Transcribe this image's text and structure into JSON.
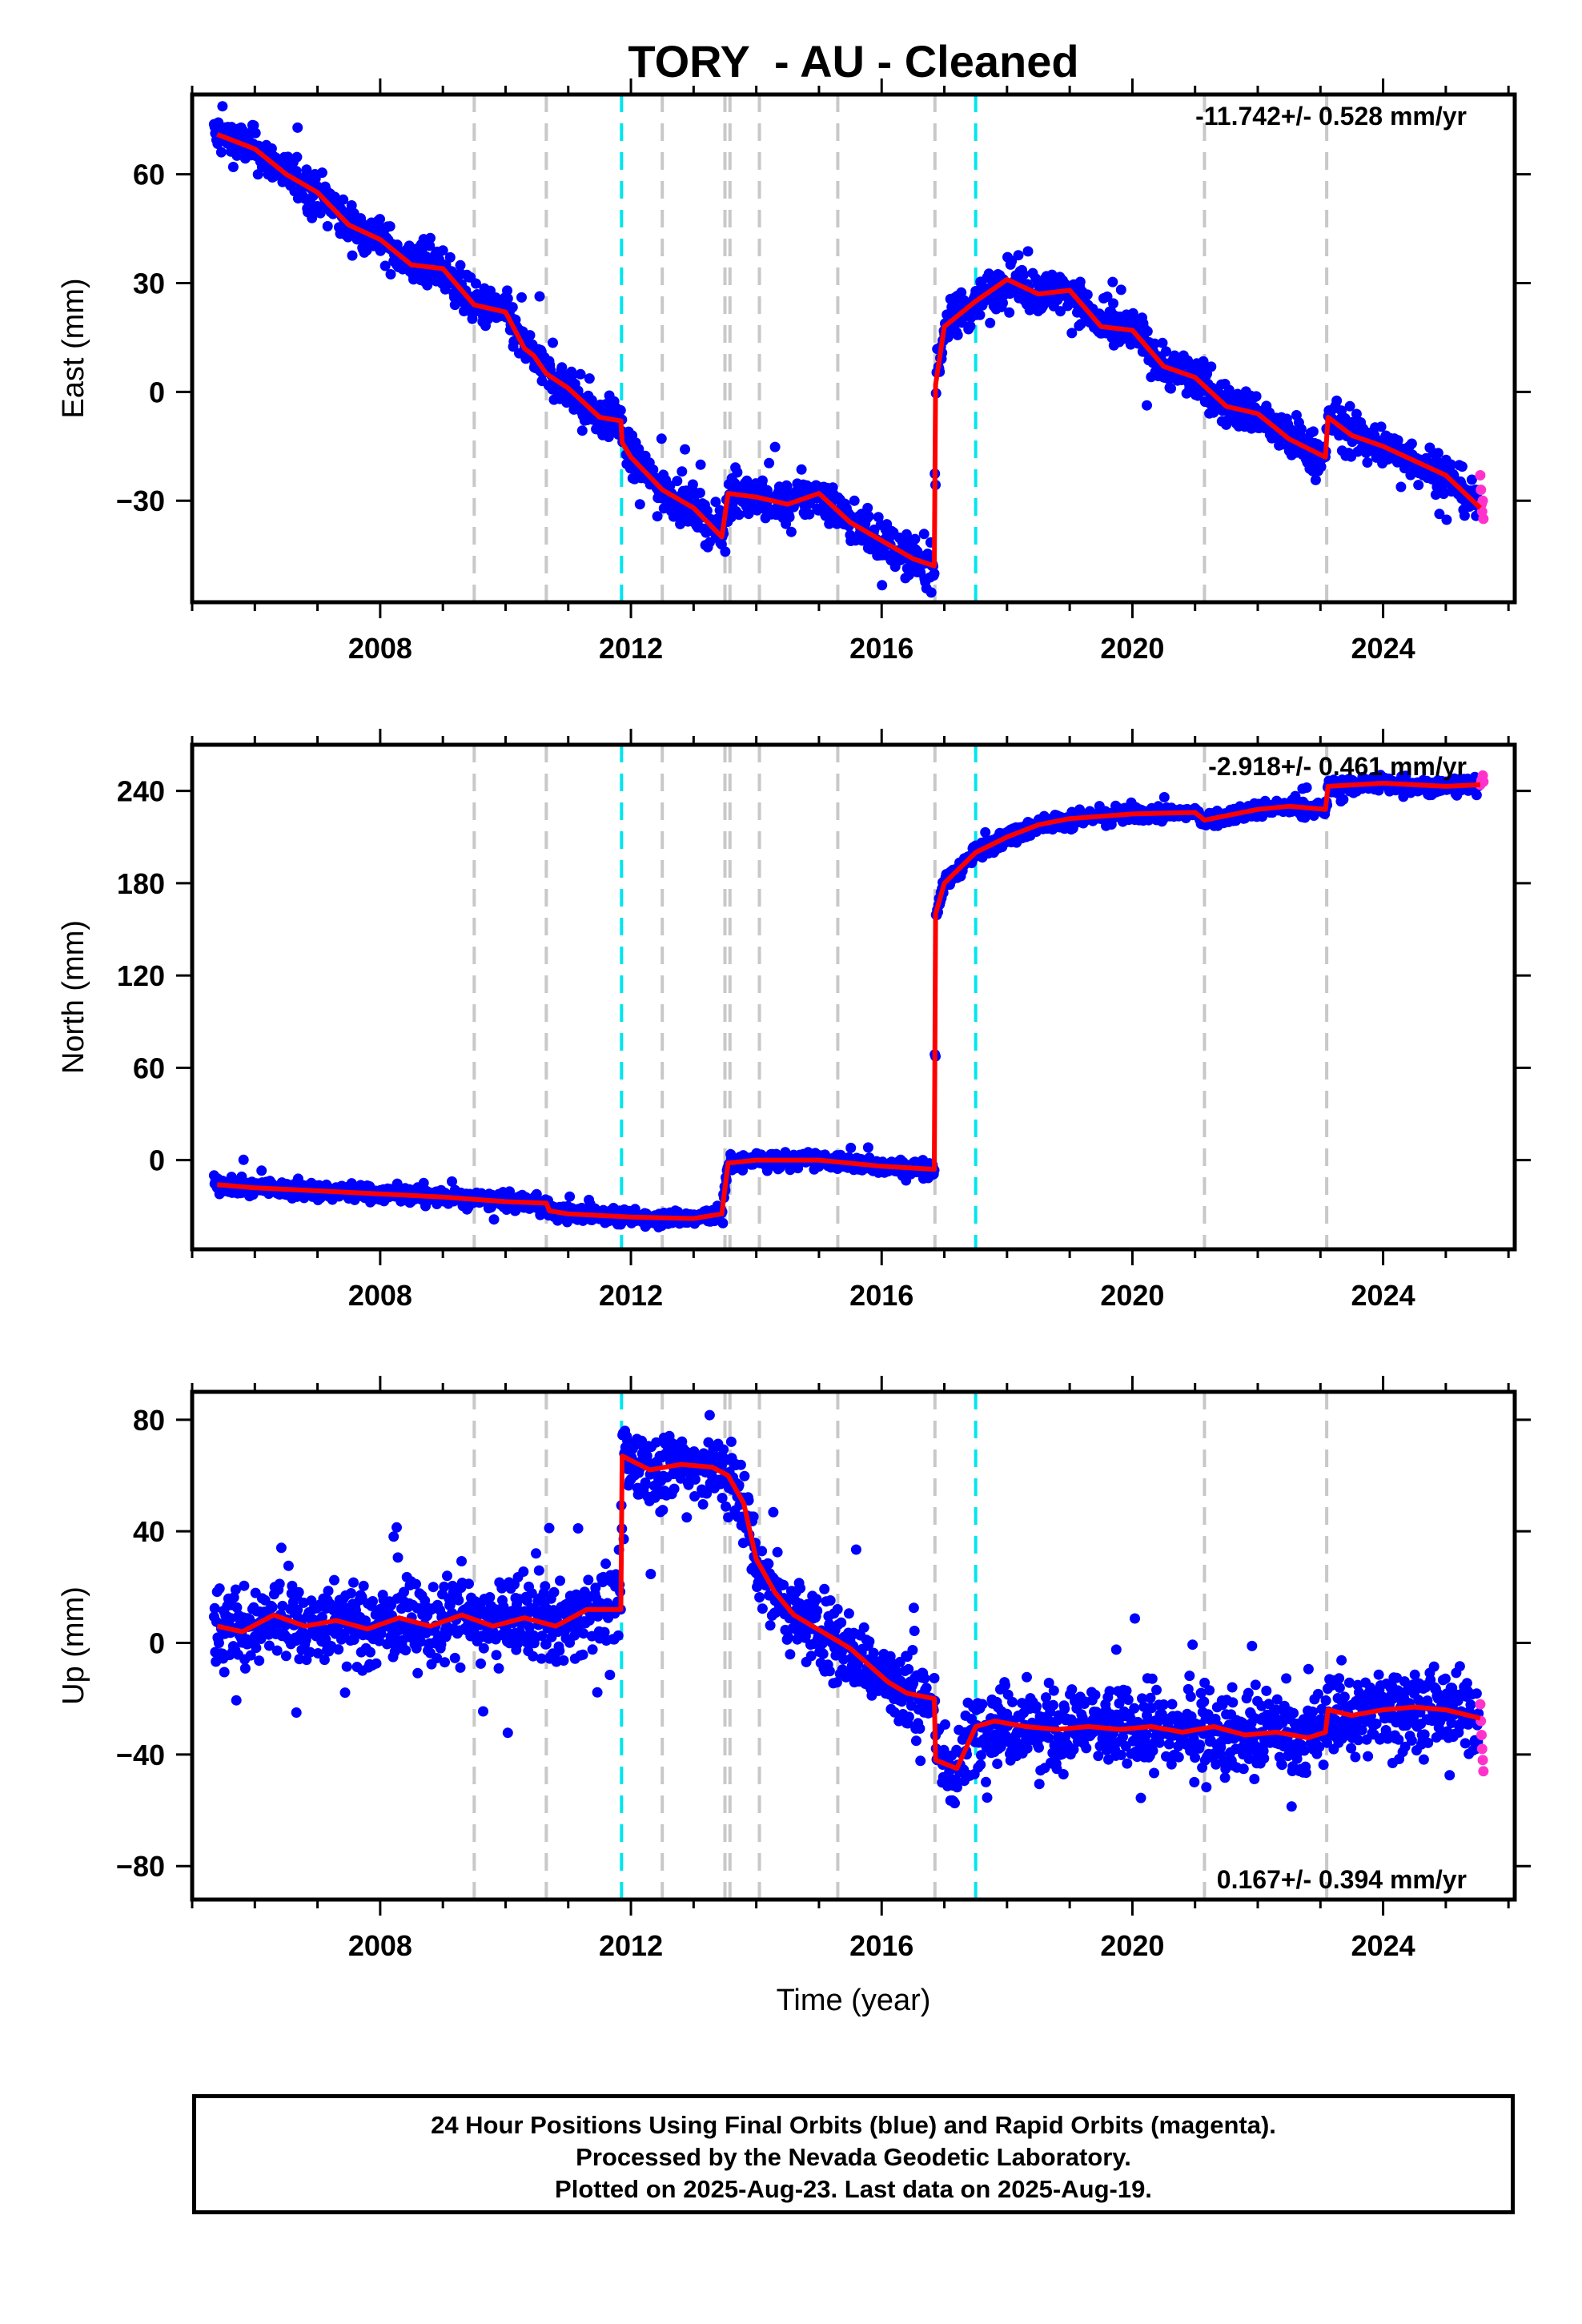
{
  "title": "TORY  - AU - Cleaned",
  "colors": {
    "final_orbits": "#0000ff",
    "rapid_orbits": "#ff33cc",
    "model": "#ff0000",
    "equipment_change": "#c8c8c8",
    "earthquake": "#00e5ee",
    "frame": "#000000"
  },
  "x_axis": {
    "label": "Time (year)",
    "range": [
      2005.0,
      2026.1
    ],
    "ticks": [
      2008,
      2012,
      2016,
      2020,
      2024
    ],
    "tick_labels": [
      "2008",
      "2012",
      "2016",
      "2020",
      "2024"
    ],
    "minor_step": 1
  },
  "event_lines": {
    "equipment": [
      2009.5,
      2010.65,
      2012.5,
      2013.5,
      2013.58,
      2014.05,
      2015.3,
      2016.85,
      2021.15,
      2023.1
    ],
    "earthquake": [
      2011.85,
      2017.5
    ]
  },
  "footer": {
    "line1": "24 Hour Positions Using Final Orbits (blue) and Rapid Orbits (magenta).",
    "line2": "Processed by the Nevada Geodetic Laboratory.",
    "line3": "Plotted on 2025-Aug-23. Last data on 2025-Aug-19."
  },
  "chart_data": [
    {
      "type": "scatter",
      "component": "east",
      "ylabel": "East (mm)",
      "ylim": [
        -58,
        82
      ],
      "yticks": [
        -30,
        0,
        30,
        60
      ],
      "ytick_labels": [
        "−30",
        "0",
        "30",
        "60"
      ],
      "rate_label": "-11.742+/- 0.528 mm/yr",
      "rate_position": "top-right",
      "noise_mm": 2.8,
      "model_x": [
        2005.4,
        2006.0,
        2006.5,
        2007.0,
        2007.5,
        2008.0,
        2008.5,
        2009.0,
        2009.5,
        2010.0,
        2010.3,
        2010.45,
        2010.65,
        2011.0,
        2011.5,
        2011.84,
        2011.86,
        2012.0,
        2012.5,
        2013.0,
        2013.45,
        2013.55,
        2014.0,
        2014.5,
        2015.0,
        2015.5,
        2016.0,
        2016.5,
        2016.84,
        2016.86,
        2017.0,
        2017.5,
        2018.0,
        2018.5,
        2019.0,
        2019.5,
        2020.0,
        2020.5,
        2021.0,
        2021.5,
        2022.0,
        2022.5,
        2023.08,
        2023.12,
        2023.5,
        2024.0,
        2024.5,
        2025.0,
        2025.55
      ],
      "model_y": [
        71,
        67,
        60,
        55,
        46,
        42,
        35,
        34,
        24,
        22,
        12,
        10,
        5,
        1,
        -7,
        -8,
        -14,
        -18,
        -27,
        -32,
        -40,
        -28,
        -29,
        -31,
        -28,
        -36,
        -41,
        -46,
        -48,
        2,
        18,
        25,
        31,
        27,
        28,
        18,
        17,
        7,
        4,
        -4,
        -6,
        -13,
        -18,
        -7,
        -12,
        -15,
        -19,
        -23,
        -32
      ],
      "final_x_range": [
        2005.35,
        2025.52
      ],
      "rapid_x": [
        2025.55,
        2025.56,
        2025.57,
        2025.58,
        2025.59,
        2025.6
      ],
      "rapid_y": [
        -23,
        -27,
        -31,
        -33,
        -30,
        -35
      ]
    },
    {
      "type": "scatter",
      "component": "north",
      "ylabel": "North (mm)",
      "ylim": [
        -58,
        270
      ],
      "yticks": [
        0,
        60,
        120,
        180,
        240
      ],
      "ytick_labels": [
        "0",
        "60",
        "120",
        "180",
        "240"
      ],
      "rate_label": "-2.918+/- 0.461 mm/yr",
      "rate_position": "top-right",
      "noise_mm": 2.5,
      "model_x": [
        2005.4,
        2006.0,
        2007.0,
        2008.0,
        2009.0,
        2010.0,
        2010.65,
        2010.7,
        2011.0,
        2012.0,
        2013.0,
        2013.45,
        2013.55,
        2014.0,
        2015.0,
        2016.0,
        2016.84,
        2016.86,
        2017.0,
        2017.5,
        2018.0,
        2018.5,
        2019.0,
        2020.0,
        2021.0,
        2021.15,
        2022.0,
        2022.5,
        2023.08,
        2023.12,
        2024.0,
        2025.0,
        2025.55
      ],
      "model_y": [
        -16,
        -18,
        -20,
        -22,
        -24,
        -27,
        -28,
        -33,
        -35,
        -37,
        -38,
        -35,
        -2,
        0,
        0,
        -4,
        -6,
        160,
        180,
        200,
        210,
        218,
        222,
        225,
        226,
        221,
        228,
        230,
        228,
        243,
        245,
        243,
        244
      ],
      "final_x_range": [
        2005.35,
        2025.52
      ],
      "rapid_x": [
        2025.55,
        2025.57,
        2025.59,
        2025.6
      ],
      "rapid_y": [
        244,
        247,
        250,
        246
      ]
    },
    {
      "type": "scatter",
      "component": "up",
      "ylabel": "Up (mm)",
      "ylim": [
        -92,
        90
      ],
      "yticks": [
        -80,
        -40,
        0,
        40,
        80
      ],
      "ytick_labels": [
        "−80",
        "−40",
        "0",
        "40",
        "80"
      ],
      "rate_label": "0.167+/- 0.394 mm/yr",
      "rate_position": "bottom-right",
      "noise_mm": 7,
      "model_x": [
        2005.4,
        2005.8,
        2006.3,
        2006.8,
        2007.3,
        2007.8,
        2008.3,
        2008.8,
        2009.3,
        2009.8,
        2010.3,
        2010.8,
        2011.3,
        2011.84,
        2011.86,
        2012.3,
        2012.8,
        2013.3,
        2013.55,
        2013.8,
        2014.0,
        2014.3,
        2014.6,
        2014.9,
        2015.2,
        2015.5,
        2015.8,
        2016.1,
        2016.4,
        2016.84,
        2016.86,
        2017.2,
        2017.5,
        2017.8,
        2018.3,
        2018.8,
        2019.3,
        2019.8,
        2020.3,
        2020.8,
        2021.3,
        2021.8,
        2022.3,
        2022.8,
        2023.08,
        2023.12,
        2023.5,
        2024.0,
        2024.5,
        2025.0,
        2025.55
      ],
      "model_y": [
        6,
        4,
        10,
        6,
        8,
        5,
        9,
        6,
        10,
        6,
        9,
        6,
        12,
        12,
        67,
        62,
        64,
        63,
        60,
        50,
        30,
        18,
        10,
        6,
        2,
        -2,
        -8,
        -14,
        -18,
        -20,
        -42,
        -45,
        -30,
        -28,
        -30,
        -31,
        -30,
        -31,
        -30,
        -32,
        -30,
        -33,
        -32,
        -34,
        -32,
        -24,
        -26,
        -24,
        -23,
        -24,
        -27
      ],
      "final_x_range": [
        2005.35,
        2025.52
      ],
      "rapid_x": [
        2025.55,
        2025.56,
        2025.57,
        2025.58,
        2025.59,
        2025.6
      ],
      "rapid_y": [
        -22,
        -28,
        -33,
        -38,
        -42,
        -46
      ]
    }
  ]
}
